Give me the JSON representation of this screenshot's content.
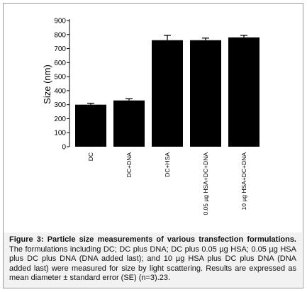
{
  "chart_data": {
    "type": "bar",
    "categories": [
      "DC",
      "DC+DNA",
      "DC+HSA",
      "0.05 µg HSA+DC+DNA",
      "10 µg  HSA+DC+DNA"
    ],
    "values": [
      300,
      330,
      760,
      760,
      780
    ],
    "errors": [
      10,
      12,
      35,
      15,
      15
    ],
    "ylabel": "Size (nm)",
    "xlabel": "",
    "ylim": [
      0,
      900
    ],
    "yticks": [
      "0",
      "100",
      "200",
      "300",
      "400",
      "500",
      "600",
      "700",
      "800",
      "900"
    ],
    "grid": false,
    "bar_color": "#000000"
  },
  "caption": {
    "label": "Figure 3: Particle size measurements of various transfection formulations.",
    "body": "The formulations including DC; DC plus DNA; DC plus 0.05 µg HSA; 0.05 µg HSA plus DC plus DNA (DNA added last); and 10 µg HSA plus DC plus DNA (DNA added last) were measured for size by light scattering. Results are expressed as mean diameter ± standard error (SE) (n=3).23."
  }
}
